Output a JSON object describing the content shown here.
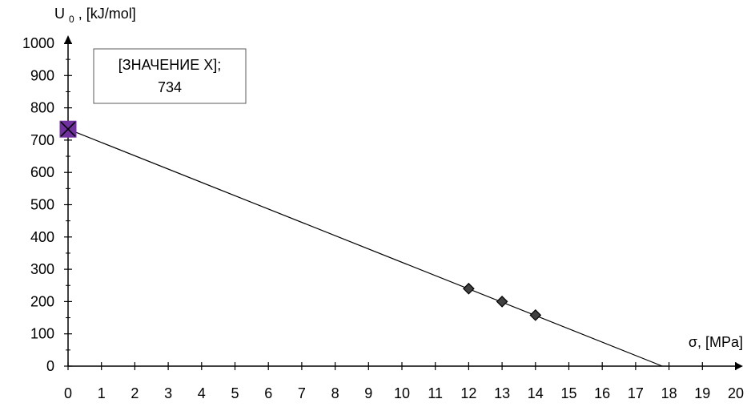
{
  "chart_data": {
    "type": "scatter",
    "title": "",
    "xlabel": "σ, [MPa]",
    "ylabel_main": "U",
    "ylabel_subscript": "0",
    "ylabel_suffix": ", [kJ/mol]",
    "xlim": [
      0,
      20
    ],
    "ylim": [
      0,
      1000
    ],
    "x_ticks": [
      0,
      1,
      2,
      3,
      4,
      5,
      6,
      7,
      8,
      9,
      10,
      11,
      12,
      13,
      14,
      15,
      16,
      17,
      18,
      19,
      20
    ],
    "y_ticks": [
      0,
      100,
      200,
      300,
      400,
      500,
      600,
      700,
      800,
      900,
      1000
    ],
    "grid": false,
    "series": [
      {
        "points": [
          {
            "x": 12,
            "y": 240
          },
          {
            "x": 13,
            "y": 200
          },
          {
            "x": 14,
            "y": 158
          }
        ],
        "marker": "diamond",
        "color": "#404040"
      },
      {
        "points": [
          {
            "x": 0,
            "y": 734
          }
        ],
        "marker": "square-x",
        "color": "#7030A0"
      }
    ],
    "trendline": {
      "from": {
        "x": 0,
        "y": 734
      },
      "to": {
        "x": 17.8,
        "y": 0
      },
      "color": "#000000"
    },
    "annotation": {
      "line1": "[ЗНАЧЕНИЕ X];",
      "line2": "734"
    }
  }
}
